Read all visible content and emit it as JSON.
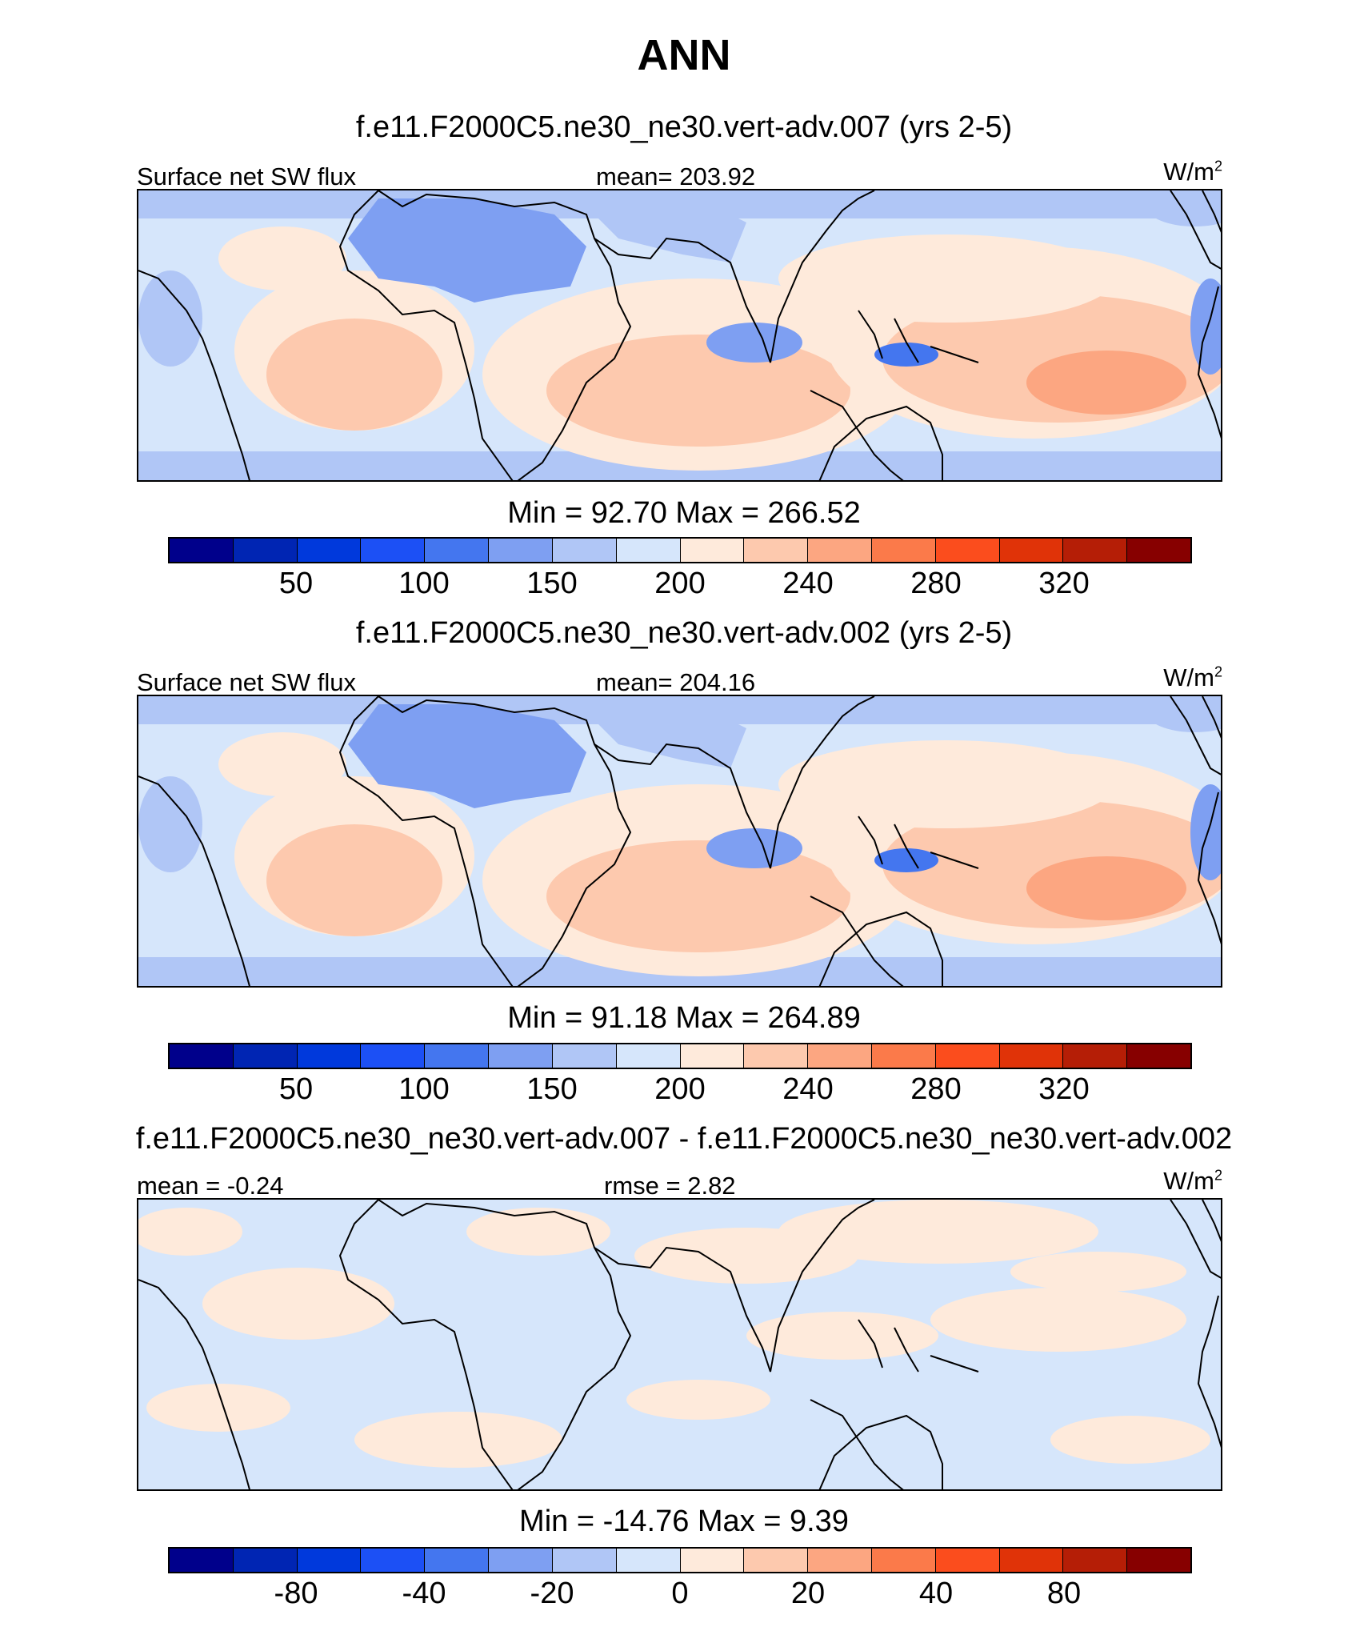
{
  "title": "ANN",
  "palette": [
    "#00008b",
    "#0025b3",
    "#0039dc",
    "#1c50f5",
    "#4476ef",
    "#7e9ff2",
    "#b0c6f6",
    "#d6e6fb",
    "#feeadb",
    "#fdc9ae",
    "#fca681",
    "#fb7a4a",
    "#fb4d1d",
    "#e03308",
    "#b51e06",
    "#870000"
  ],
  "panels": [
    {
      "title": "f.e11.F2000C5.ne30_ne30.vert-adv.007 (yrs 2-5)",
      "left_label": "Surface net SW flux",
      "center_label": "mean= 203.92",
      "unit": "W/m",
      "unit_sup": "2",
      "minmax": "Min =  92.70 Max = 266.52",
      "tick_labels": [
        "50",
        "100",
        "150",
        "200",
        "240",
        "280",
        "320"
      ],
      "kind": "abs"
    },
    {
      "title": "f.e11.F2000C5.ne30_ne30.vert-adv.002 (yrs 2-5)",
      "left_label": "Surface net SW flux",
      "center_label": "mean= 204.16",
      "unit": "W/m",
      "unit_sup": "2",
      "minmax": "Min =  91.18 Max = 264.89",
      "tick_labels": [
        "50",
        "100",
        "150",
        "200",
        "240",
        "280",
        "320"
      ],
      "kind": "abs"
    },
    {
      "title": "f.e11.F2000C5.ne30_ne30.vert-adv.007 - f.e11.F2000C5.ne30_ne30.vert-adv.002",
      "left_label": "mean =  -0.24",
      "center_label": "rmse =   2.82",
      "unit": "W/m",
      "unit_sup": "2",
      "minmax": "Min = -14.76 Max =   9.39",
      "tick_labels": [
        "-80",
        "-40",
        "-20",
        "0",
        "20",
        "40",
        "80"
      ],
      "kind": "diff"
    }
  ]
}
